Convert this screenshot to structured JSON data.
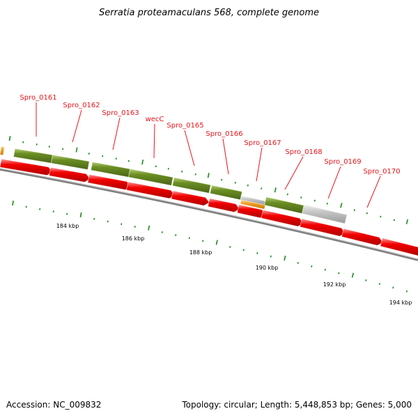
{
  "title": "Serratia proteamaculans 568, complete genome",
  "footer": {
    "accession": "Accession: NC_009832",
    "summary": "Topology: circular; Length: 5,448,853 bp; Genes: 5,000"
  },
  "colors": {
    "feature_red": "#f20000",
    "feature_green": "#6b8e23",
    "feature_gray": "#c4c4c4",
    "feature_orange": "#f0a024",
    "label_red": "#e8141a",
    "tick_green": "#1a8a1a",
    "backbone": "#7f7f7f"
  },
  "gene_labels": [
    "Spro_0161",
    "Spro_0162",
    "Spro_0163",
    "wecC",
    "Spro_0165",
    "Spro_0166",
    "Spro_0167",
    "Spro_0168",
    "Spro_0169",
    "Spro_0170"
  ],
  "scale_labels": [
    "184 kbp",
    "186 kbp",
    "188 kbp",
    "190 kbp",
    "192 kbp",
    "194 kbp"
  ]
}
